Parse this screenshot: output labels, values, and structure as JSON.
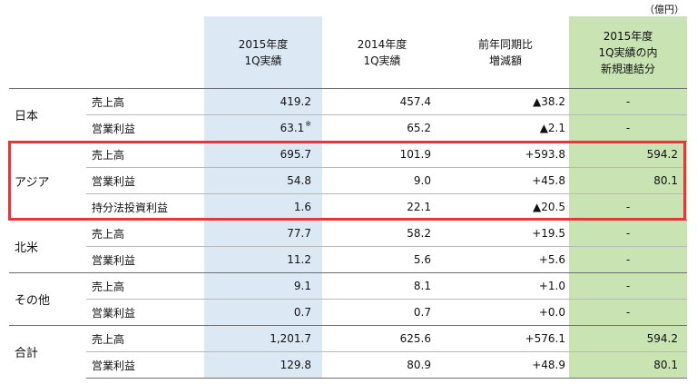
{
  "unit_label": "（億円）",
  "headers": {
    "col1": [
      "2015年度",
      "1Q実績"
    ],
    "col2": [
      "2014年度",
      "1Q実績"
    ],
    "col3": [
      "前年同期比",
      "増減額"
    ],
    "col4": [
      "2015年度",
      "1Q実績の内",
      "新規連結分"
    ]
  },
  "groups": [
    {
      "region": "日本",
      "rows": [
        {
          "item": "売上高",
          "v1": "419.2",
          "v2": "457.4",
          "v3": "▲38.2",
          "v4": "-"
        },
        {
          "item": "営業利益",
          "v1": "63.1",
          "note": "※",
          "v2": "65.2",
          "v3": "▲2.1",
          "v4": "-"
        }
      ]
    },
    {
      "region": "アジア",
      "rows": [
        {
          "item": "売上高",
          "v1": "695.7",
          "v2": "101.9",
          "v3": "+593.8",
          "v4": "594.2"
        },
        {
          "item": "営業利益",
          "v1": "54.8",
          "v2": "9.0",
          "v3": "+45.8",
          "v4": "80.1"
        },
        {
          "item": "持分法投資利益",
          "v1": "1.6",
          "v2": "22.1",
          "v3": "▲20.5",
          "v4": "-"
        }
      ]
    },
    {
      "region": "北米",
      "rows": [
        {
          "item": "売上高",
          "v1": "77.7",
          "v2": "58.2",
          "v3": "+19.5",
          "v4": "-"
        },
        {
          "item": "営業利益",
          "v1": "11.2",
          "v2": "5.6",
          "v3": "+5.6",
          "v4": "-"
        }
      ]
    },
    {
      "region": "その他",
      "rows": [
        {
          "item": "売上高",
          "v1": "9.1",
          "v2": "8.1",
          "v3": "+1.0",
          "v4": "-"
        },
        {
          "item": "営業利益",
          "v1": "0.7",
          "v2": "0.7",
          "v3": "+0.0",
          "v4": "-"
        }
      ]
    },
    {
      "region": "合計",
      "rows": [
        {
          "item": "売上高",
          "v1": "1,201.7",
          "v2": "625.6",
          "v3": "+576.1",
          "v4": "594.2"
        },
        {
          "item": "営業利益",
          "v1": "129.8",
          "v2": "80.9",
          "v3": "+48.9",
          "v4": "80.1"
        }
      ]
    }
  ],
  "colors": {
    "col1_bg": "#dce9f5",
    "col4_bg": "#c9e3b3",
    "highlight": "#e8353c"
  }
}
